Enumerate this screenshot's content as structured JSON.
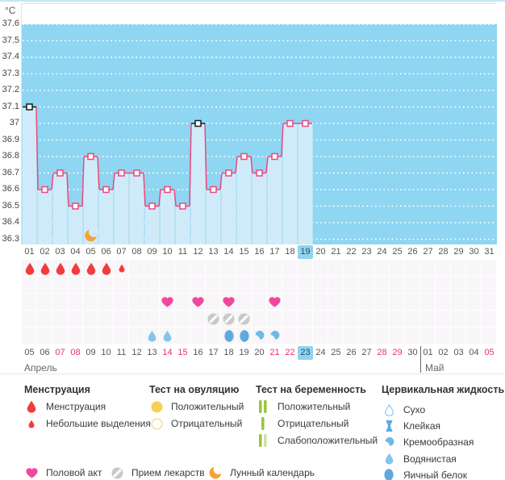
{
  "chart_data": {
    "type": "line",
    "unit": "°C",
    "ylim": [
      36.3,
      37.6
    ],
    "ytick_step": 0.1,
    "yticks": [
      "37.6",
      "37.5",
      "37.4",
      "37.3",
      "37.2",
      "37.1",
      "37",
      "36.9",
      "36.8",
      "36.7",
      "36.6",
      "36.5",
      "36.4",
      "36.3"
    ],
    "grid": "horizontal-dotted",
    "x_cycle_days": [
      "01",
      "02",
      "03",
      "04",
      "05",
      "06",
      "07",
      "08",
      "09",
      "10",
      "11",
      "12",
      "13",
      "14",
      "15",
      "16",
      "17",
      "18",
      "19",
      "20",
      "21",
      "22",
      "23",
      "24",
      "25",
      "26",
      "27",
      "28",
      "29",
      "30",
      "31"
    ],
    "current_cycle_day_index": 18,
    "series": [
      {
        "name": "basal-temperature",
        "values": [
          37.1,
          36.6,
          36.7,
          36.5,
          36.8,
          36.6,
          36.7,
          36.7,
          36.5,
          36.6,
          36.5,
          37,
          36.6,
          36.7,
          36.8,
          36.7,
          36.8,
          37,
          37,
          null,
          null,
          null,
          null,
          null,
          null,
          null,
          null,
          null,
          null,
          null,
          null
        ]
      }
    ],
    "black_marker_days": [
      1,
      12
    ],
    "moon_marker_day": 5
  },
  "events": {
    "menstruation_heavy_days": [
      1,
      2,
      3,
      4,
      5,
      6
    ],
    "menstruation_light_days": [
      7
    ],
    "intercourse_days": [
      10,
      12,
      14,
      17
    ],
    "medication_days": [
      13,
      14,
      15
    ],
    "cervical_fluid": [
      {
        "day": 9,
        "type": "watery"
      },
      {
        "day": 10,
        "type": "watery"
      },
      {
        "day": 14,
        "type": "eggwhite"
      },
      {
        "day": 15,
        "type": "eggwhite"
      },
      {
        "day": 16,
        "type": "creamy"
      },
      {
        "day": 17,
        "type": "creamy"
      }
    ]
  },
  "calendar": {
    "dates": [
      "05",
      "06",
      "07",
      "08",
      "09",
      "10",
      "11",
      "12",
      "13",
      "14",
      "15",
      "16",
      "17",
      "18",
      "19",
      "20",
      "21",
      "22",
      "23",
      "24",
      "25",
      "26",
      "27",
      "28",
      "29",
      "30",
      "01",
      "02",
      "03",
      "04",
      "05"
    ],
    "red_indices": [
      2,
      3,
      9,
      10,
      16,
      17,
      23,
      24,
      30
    ],
    "today_index": 18,
    "months": [
      {
        "label": "Апрель"
      },
      {
        "label": "Май"
      }
    ],
    "may_start_index": 26
  },
  "legend": {
    "sections": [
      {
        "title": "Менструация",
        "items": [
          {
            "icon": "drop-red-large-icon",
            "label": "Менструация"
          },
          {
            "icon": "drop-red-small-icon",
            "label": "Небольшие выделения"
          }
        ]
      },
      {
        "title": "Тест на овуляцию",
        "items": [
          {
            "icon": "circle-filled-yellow-icon",
            "label": "Положительный"
          },
          {
            "icon": "circle-outline-yellow-icon",
            "label": "Отрицательный"
          }
        ]
      },
      {
        "title": "Тест на беременность",
        "items": [
          {
            "icon": "two-green-bars-icon",
            "label": "Положительный"
          },
          {
            "icon": "one-green-bar-icon",
            "label": "Отрицательный"
          },
          {
            "icon": "green-pale-bars-icon",
            "label": "Слабоположительный"
          }
        ]
      },
      {
        "title": "Цервикальная жидкость",
        "items": [
          {
            "icon": "drop-outline-icon",
            "label": "Сухо"
          },
          {
            "icon": "spool-icon",
            "label": "Клейкая"
          },
          {
            "icon": "comma-icon",
            "label": "Кремообразная"
          },
          {
            "icon": "drop-watery-icon",
            "label": "Водянистая"
          },
          {
            "icon": "oval-eggwhite-icon",
            "label": "Яичный белок"
          }
        ]
      }
    ],
    "bottom_items": [
      {
        "icon": "heart-icon",
        "label": "Половой акт"
      },
      {
        "icon": "pill-icon",
        "label": "Прием лекарств"
      },
      {
        "icon": "moon-icon",
        "label": "Лунный календарь"
      }
    ]
  },
  "colors": {
    "sky": "#8ED6F1",
    "column_fill": "#CFEBFA",
    "column_sep": "#BCE2F3",
    "line_pink": "#F0477B",
    "marker_black": "#1A1A1A",
    "drop_red": "#F23B3B",
    "heart_pink": "#F2479F",
    "pill_gray": "#C9C9C9",
    "moon_orange": "#F7A233",
    "fluid_watery": "#82C5ED",
    "fluid_eggwhite": "#5FA9DD",
    "fluid_creamy": "#6FB9E9",
    "fluid_dry_outline": "#93CCEF",
    "ovulation_yellow": "#F6D254",
    "ovulation_outline": "#F2DC9B",
    "pregnancy_green": "#9CC441",
    "pregnancy_pale": "#D0DFA8",
    "today_highlight": "#8FD3EF",
    "weekend_red": "#ED2E67"
  }
}
